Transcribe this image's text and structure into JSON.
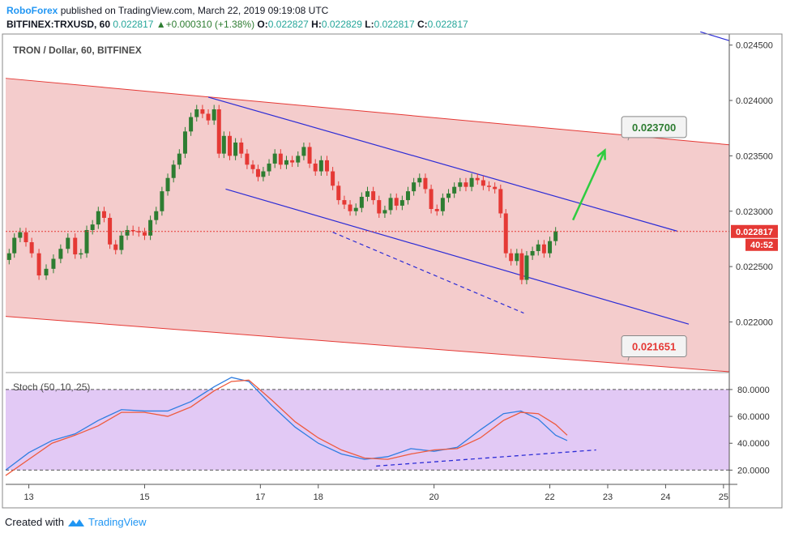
{
  "header": {
    "publisher": "RoboForex",
    "published_text": "published on TradingView.com, March 22, 2019 09:19:08 UTC",
    "symbol": "BITFINEX:TRXUSD, 60",
    "last": "0.022817",
    "change": "+0.000310 (+1.38%)",
    "o_label": "O:",
    "o_value": "0.022827",
    "h_label": "H:",
    "h_value": "0.022829",
    "l_label": "L:",
    "l_value": "0.022817",
    "c_label": "C:",
    "c_value": "0.022817"
  },
  "footer": {
    "created_with": "Created with",
    "brand": "TradingView"
  },
  "colors": {
    "bull": "#2e7d32",
    "bear": "#e53935",
    "channel_fill": "#f4cccc",
    "channel_line": "#e53935",
    "trend_line": "#2c2cd6",
    "stoch_bg": "#e2c9f5",
    "stoch_k": "#2f7de1",
    "stoch_d": "#ee5a3d",
    "arrow": "#2ecc40"
  },
  "chart_data": [
    {
      "type": "candlestick",
      "title": "TRON / Dollar, 60, BITFINEX",
      "y_ticks": [
        "0.024500",
        "0.024000",
        "0.023500",
        "0.023000",
        "0.022500",
        "0.022000"
      ],
      "ylim": [
        0.02155,
        0.0246
      ],
      "x_ticks": [
        "13",
        "15",
        "17",
        "18",
        "20",
        "22",
        "23",
        "24",
        "25"
      ],
      "x_tick_days": [
        13,
        15,
        17,
        18,
        20,
        22,
        23,
        24,
        25
      ],
      "xlim": [
        12.6,
        25.1
      ],
      "last_price_label": "0.022817",
      "countdown_label": "40:52",
      "last_price": 0.022817,
      "close_path": [
        [
          12.62,
          0.02256
        ],
        [
          12.7,
          0.02262
        ],
        [
          12.8,
          0.02276
        ],
        [
          12.9,
          0.02281
        ],
        [
          13.0,
          0.02272
        ],
        [
          13.1,
          0.02262
        ],
        [
          13.25,
          0.02242
        ],
        [
          13.35,
          0.02248
        ],
        [
          13.5,
          0.02257
        ],
        [
          13.6,
          0.02266
        ],
        [
          13.75,
          0.02276
        ],
        [
          13.85,
          0.02261
        ],
        [
          13.95,
          0.02262
        ],
        [
          14.05,
          0.02283
        ],
        [
          14.15,
          0.02288
        ],
        [
          14.25,
          0.023
        ],
        [
          14.35,
          0.02294
        ],
        [
          14.45,
          0.0227
        ],
        [
          14.55,
          0.02265
        ],
        [
          14.65,
          0.02278
        ],
        [
          14.75,
          0.02283
        ],
        [
          14.85,
          0.02282
        ],
        [
          14.95,
          0.02281
        ],
        [
          15.05,
          0.02278
        ],
        [
          15.15,
          0.02292
        ],
        [
          15.25,
          0.023
        ],
        [
          15.35,
          0.02318
        ],
        [
          15.45,
          0.0233
        ],
        [
          15.55,
          0.02342
        ],
        [
          15.65,
          0.02352
        ],
        [
          15.75,
          0.02372
        ],
        [
          15.85,
          0.02385
        ],
        [
          15.95,
          0.02392
        ],
        [
          16.05,
          0.02388
        ],
        [
          16.15,
          0.02382
        ],
        [
          16.25,
          0.02392
        ],
        [
          16.32,
          0.02352
        ],
        [
          16.42,
          0.02368
        ],
        [
          16.52,
          0.0235
        ],
        [
          16.62,
          0.02362
        ],
        [
          16.72,
          0.02352
        ],
        [
          16.82,
          0.02342
        ],
        [
          16.92,
          0.02338
        ],
        [
          17.0,
          0.02331
        ],
        [
          17.1,
          0.02336
        ],
        [
          17.2,
          0.02343
        ],
        [
          17.3,
          0.02352
        ],
        [
          17.4,
          0.02342
        ],
        [
          17.5,
          0.02346
        ],
        [
          17.6,
          0.02344
        ],
        [
          17.7,
          0.0235
        ],
        [
          17.8,
          0.02358
        ],
        [
          17.9,
          0.02343
        ],
        [
          18.0,
          0.02336
        ],
        [
          18.1,
          0.02346
        ],
        [
          18.2,
          0.02336
        ],
        [
          18.3,
          0.02323
        ],
        [
          18.4,
          0.0231
        ],
        [
          18.5,
          0.02306
        ],
        [
          18.6,
          0.023
        ],
        [
          18.7,
          0.02303
        ],
        [
          18.8,
          0.02313
        ],
        [
          18.9,
          0.02318
        ],
        [
          19.0,
          0.0231
        ],
        [
          19.1,
          0.02298
        ],
        [
          19.2,
          0.02301
        ],
        [
          19.3,
          0.02312
        ],
        [
          19.4,
          0.02305
        ],
        [
          19.5,
          0.0231
        ],
        [
          19.6,
          0.02318
        ],
        [
          19.7,
          0.02326
        ],
        [
          19.8,
          0.0233
        ],
        [
          19.9,
          0.0232
        ],
        [
          20.0,
          0.02302
        ],
        [
          20.1,
          0.023
        ],
        [
          20.2,
          0.02312
        ],
        [
          20.3,
          0.02316
        ],
        [
          20.4,
          0.02322
        ],
        [
          20.5,
          0.02326
        ],
        [
          20.6,
          0.02322
        ],
        [
          20.7,
          0.0233
        ],
        [
          20.8,
          0.02328
        ],
        [
          20.9,
          0.02323
        ],
        [
          21.0,
          0.02322
        ],
        [
          21.1,
          0.0232
        ],
        [
          21.2,
          0.02298
        ],
        [
          21.28,
          0.02262
        ],
        [
          21.38,
          0.02255
        ],
        [
          21.48,
          0.02262
        ],
        [
          21.55,
          0.02238
        ],
        [
          21.65,
          0.0226
        ],
        [
          21.75,
          0.02264
        ],
        [
          21.85,
          0.0227
        ],
        [
          21.95,
          0.02262
        ],
        [
          22.05,
          0.02273
        ],
        [
          22.15,
          0.022817
        ]
      ],
      "red_channel": {
        "upper": [
          [
            12.6,
            0.0242
          ],
          [
            25.1,
            0.0236
          ]
        ],
        "lower": [
          [
            12.6,
            0.02205
          ],
          [
            25.1,
            0.02155
          ]
        ]
      },
      "blue_channel": {
        "upper": [
          [
            16.1,
            0.02403
          ],
          [
            24.2,
            0.02282
          ]
        ],
        "lower": [
          [
            16.4,
            0.0232
          ],
          [
            24.4,
            0.02198
          ]
        ],
        "dashed": [
          [
            18.25,
            0.02281
          ],
          [
            21.55,
            0.02208
          ]
        ],
        "top_right_line": [
          [
            24.6,
            0.02462
          ],
          [
            25.1,
            0.02454
          ]
        ]
      },
      "green_arrow": [
        [
          22.4,
          0.02292
        ],
        [
          22.95,
          0.02355
        ]
      ],
      "annotations": [
        {
          "text": "0.023700",
          "box_center": [
            23.8,
            0.02376
          ],
          "pointer": [
            23.35,
            0.02364
          ]
        },
        {
          "text": "0.021651",
          "box_center": [
            23.8,
            0.02178
          ],
          "pointer": [
            23.35,
            0.02165
          ]
        }
      ]
    },
    {
      "type": "line",
      "title": "Stoch (50, 10, 25)",
      "y_ticks": [
        "80.0000",
        "60.0000",
        "40.0000",
        "20.0000"
      ],
      "ylim": [
        10,
        92
      ],
      "x_ticks": [
        "13",
        "15",
        "17",
        "18",
        "20",
        "22",
        "23",
        "24",
        "25"
      ],
      "series": [
        {
          "name": "",
          "x": [
            12.6,
            13.0,
            13.4,
            13.8,
            14.2,
            14.6,
            15.0,
            15.4,
            15.8,
            16.2,
            16.5,
            16.8,
            17.2,
            17.6,
            18.0,
            18.4,
            18.8,
            19.2,
            19.6,
            20.0,
            20.4,
            20.8,
            21.2,
            21.5,
            21.8,
            22.1,
            22.3
          ],
          "values": [
            20,
            33,
            42,
            47,
            57,
            65,
            64,
            64,
            71,
            82,
            89,
            86,
            68,
            52,
            40,
            32,
            28,
            30,
            36,
            34,
            37,
            50,
            62,
            64,
            58,
            46,
            42
          ]
        },
        {
          "name": "",
          "x": [
            12.6,
            13.0,
            13.4,
            13.8,
            14.2,
            14.6,
            15.0,
            15.4,
            15.8,
            16.2,
            16.5,
            16.8,
            17.2,
            17.6,
            18.0,
            18.4,
            18.8,
            19.2,
            19.6,
            20.0,
            20.4,
            20.8,
            21.2,
            21.5,
            21.8,
            22.1,
            22.3
          ],
          "values": [
            16,
            28,
            40,
            46,
            53,
            63,
            63,
            60,
            67,
            79,
            86,
            87,
            72,
            56,
            44,
            35,
            29,
            28,
            32,
            35,
            36,
            44,
            57,
            63,
            62,
            54,
            46
          ]
        }
      ],
      "trend_dashed": [
        [
          19.0,
          23
        ],
        [
          22.8,
          35
        ]
      ],
      "level_lines": [
        80,
        20
      ]
    }
  ]
}
